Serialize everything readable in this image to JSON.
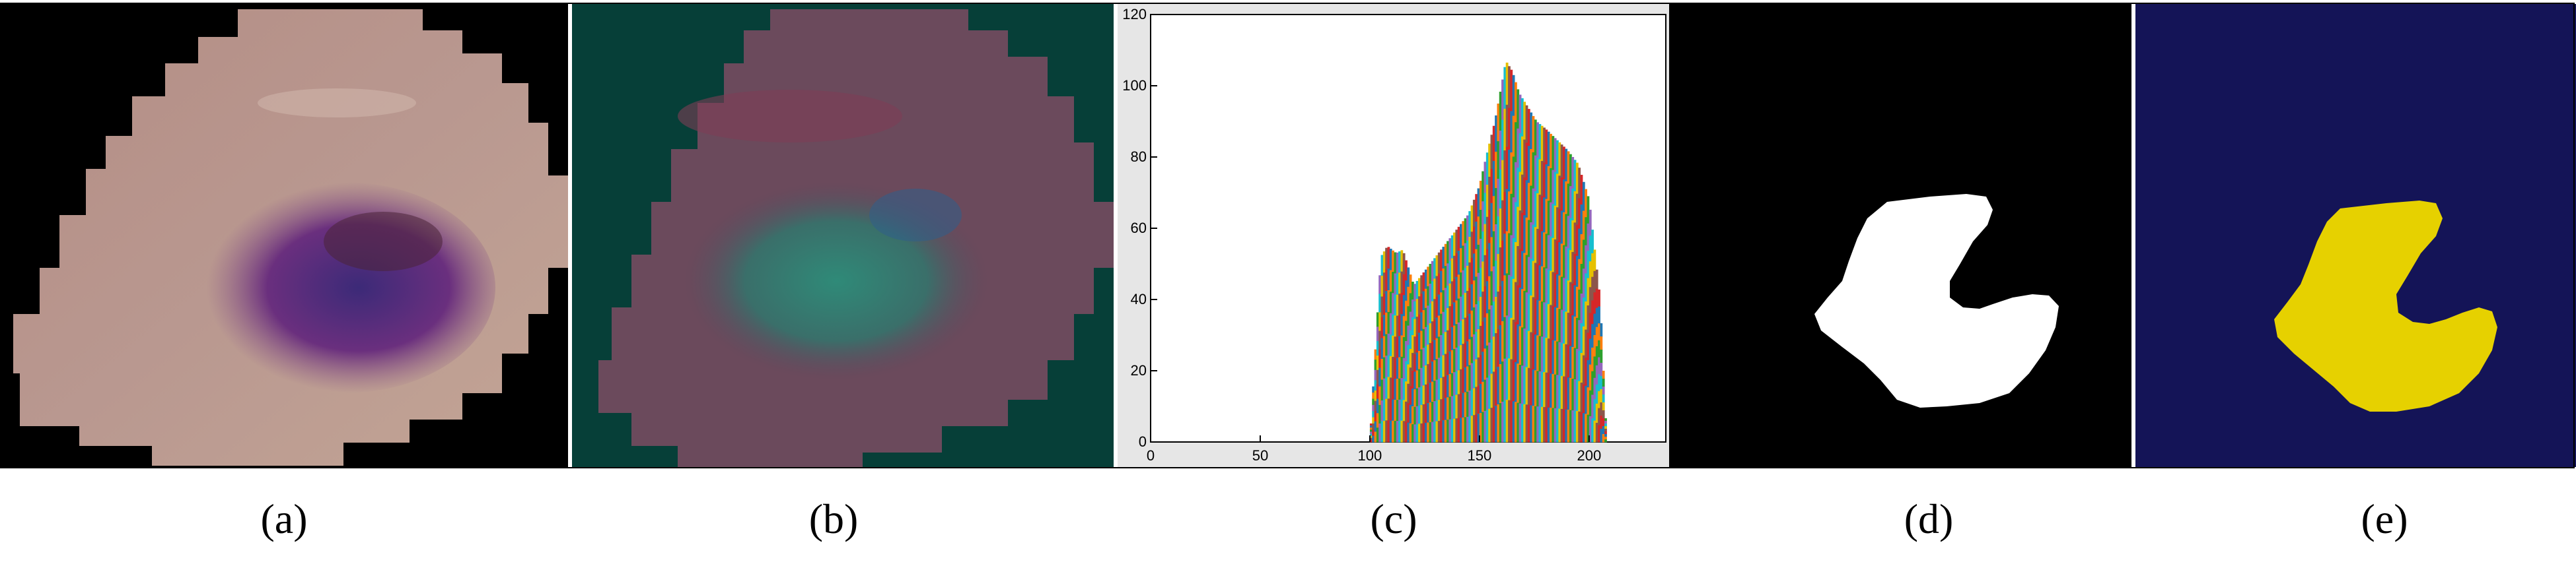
{
  "captions": {
    "a": "(a)",
    "b": "(b)",
    "c": "(c)",
    "d": "(d)",
    "e": "(e)"
  },
  "colors": {
    "cell_a": "#b6938a",
    "nucleus_a": "#5a2f7a",
    "background_b": "#063f38",
    "cell_b": "#6c4a5c",
    "nucleus_b": "#2e7a6a",
    "mask_background_d": "#000000",
    "mask_foreground_d": "#ffffff",
    "mask_background_e": "#141457",
    "mask_foreground_e": "#e6d100"
  },
  "chart_data": {
    "type": "bar",
    "title": "",
    "xlabel": "",
    "ylabel": "",
    "xlim": [
      0,
      235
    ],
    "ylim": [
      0,
      120
    ],
    "xticks": [
      "0",
      "50",
      "100",
      "150",
      "200"
    ],
    "yticks": [
      "0",
      "20",
      "40",
      "60",
      "80",
      "100",
      "120"
    ],
    "x": [
      100,
      105,
      108,
      112,
      115,
      118,
      120,
      125,
      130,
      135,
      140,
      145,
      150,
      153,
      157,
      160,
      162,
      165,
      168,
      172,
      176,
      180,
      185,
      190,
      195,
      200,
      205,
      208
    ],
    "values": [
      0,
      52,
      55,
      53,
      54,
      48,
      44,
      48,
      52,
      56,
      60,
      64,
      72,
      80,
      90,
      100,
      107,
      104,
      98,
      94,
      90,
      88,
      85,
      82,
      78,
      68,
      40,
      0
    ]
  }
}
